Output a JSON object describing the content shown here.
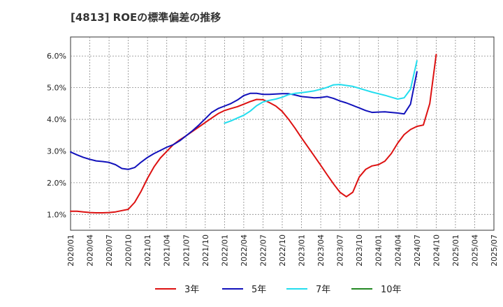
{
  "chart_data": {
    "type": "line",
    "title": "[4813]  ROEの標準偏差の推移",
    "xlabel": "",
    "ylabel": "",
    "ylim": [
      0.5,
      6.6
    ],
    "y_ticks": [
      1.0,
      2.0,
      3.0,
      4.0,
      5.0,
      6.0
    ],
    "y_tick_labels": [
      "1.0%",
      "2.0%",
      "3.0%",
      "4.0%",
      "5.0%",
      "6.0%"
    ],
    "x_tick_labels": [
      "2020/01",
      "2020/04",
      "2020/07",
      "2020/10",
      "2021/01",
      "2021/04",
      "2021/07",
      "2021/10",
      "2022/01",
      "2022/04",
      "2022/07",
      "2022/10",
      "2023/01",
      "2023/04",
      "2023/07",
      "2023/10",
      "2024/01",
      "2024/04",
      "2024/07",
      "2024/10",
      "2025/01",
      "2025/04",
      "2025/07"
    ],
    "x_range_months": [
      0,
      66
    ],
    "grid": true,
    "legend_position": "bottom",
    "series": [
      {
        "name": "3年",
        "color": "#dd1111",
        "points": [
          [
            0,
            1.1
          ],
          [
            1,
            1.1
          ],
          [
            2,
            1.08
          ],
          [
            3,
            1.06
          ],
          [
            4,
            1.05
          ],
          [
            5,
            1.05
          ],
          [
            6,
            1.06
          ],
          [
            7,
            1.08
          ],
          [
            8,
            1.12
          ],
          [
            9,
            1.16
          ],
          [
            10,
            1.38
          ],
          [
            11,
            1.73
          ],
          [
            12,
            2.14
          ],
          [
            13,
            2.5
          ],
          [
            14,
            2.78
          ],
          [
            15,
            2.99
          ],
          [
            16,
            3.2
          ],
          [
            17,
            3.35
          ],
          [
            18,
            3.48
          ],
          [
            19,
            3.62
          ],
          [
            20,
            3.76
          ],
          [
            21,
            3.9
          ],
          [
            22,
            4.04
          ],
          [
            23,
            4.18
          ],
          [
            24,
            4.28
          ],
          [
            25,
            4.34
          ],
          [
            26,
            4.4
          ],
          [
            27,
            4.48
          ],
          [
            28,
            4.56
          ],
          [
            29,
            4.63
          ],
          [
            30,
            4.62
          ],
          [
            31,
            4.53
          ],
          [
            32,
            4.42
          ],
          [
            33,
            4.25
          ],
          [
            34,
            4.0
          ],
          [
            35,
            3.72
          ],
          [
            36,
            3.42
          ],
          [
            37,
            3.13
          ],
          [
            38,
            2.84
          ],
          [
            39,
            2.55
          ],
          [
            40,
            2.25
          ],
          [
            41,
            1.96
          ],
          [
            42,
            1.7
          ],
          [
            43,
            1.56
          ],
          [
            44,
            1.7
          ],
          [
            45,
            2.18
          ],
          [
            46,
            2.42
          ],
          [
            47,
            2.53
          ],
          [
            48,
            2.57
          ],
          [
            49,
            2.68
          ],
          [
            50,
            2.92
          ],
          [
            51,
            3.25
          ],
          [
            52,
            3.52
          ],
          [
            53,
            3.68
          ],
          [
            54,
            3.78
          ],
          [
            55,
            3.82
          ],
          [
            56,
            4.5
          ],
          [
            57,
            6.05
          ]
        ]
      },
      {
        "name": "5年",
        "color": "#1111bb",
        "points": [
          [
            0,
            2.97
          ],
          [
            1,
            2.88
          ],
          [
            2,
            2.8
          ],
          [
            3,
            2.74
          ],
          [
            4,
            2.69
          ],
          [
            5,
            2.67
          ],
          [
            6,
            2.64
          ],
          [
            7,
            2.57
          ],
          [
            8,
            2.45
          ],
          [
            9,
            2.42
          ],
          [
            10,
            2.48
          ],
          [
            11,
            2.65
          ],
          [
            12,
            2.8
          ],
          [
            13,
            2.92
          ],
          [
            14,
            3.02
          ],
          [
            15,
            3.12
          ],
          [
            16,
            3.2
          ],
          [
            17,
            3.32
          ],
          [
            18,
            3.48
          ],
          [
            19,
            3.64
          ],
          [
            20,
            3.82
          ],
          [
            21,
            4.02
          ],
          [
            22,
            4.22
          ],
          [
            23,
            4.34
          ],
          [
            24,
            4.42
          ],
          [
            25,
            4.5
          ],
          [
            26,
            4.61
          ],
          [
            27,
            4.75
          ],
          [
            28,
            4.82
          ],
          [
            29,
            4.82
          ],
          [
            30,
            4.79
          ],
          [
            31,
            4.79
          ],
          [
            32,
            4.8
          ],
          [
            33,
            4.81
          ],
          [
            34,
            4.81
          ],
          [
            35,
            4.77
          ],
          [
            36,
            4.72
          ],
          [
            37,
            4.7
          ],
          [
            38,
            4.68
          ],
          [
            39,
            4.69
          ],
          [
            40,
            4.72
          ],
          [
            41,
            4.66
          ],
          [
            42,
            4.58
          ],
          [
            43,
            4.52
          ],
          [
            44,
            4.44
          ],
          [
            45,
            4.36
          ],
          [
            46,
            4.28
          ],
          [
            47,
            4.22
          ],
          [
            48,
            4.23
          ],
          [
            49,
            4.24
          ],
          [
            50,
            4.22
          ],
          [
            51,
            4.2
          ],
          [
            52,
            4.17
          ],
          [
            53,
            4.48
          ],
          [
            54,
            5.5
          ]
        ]
      },
      {
        "name": "7年",
        "color": "#22ddee",
        "points": [
          [
            24,
            3.88
          ],
          [
            25,
            3.95
          ],
          [
            26,
            4.04
          ],
          [
            27,
            4.13
          ],
          [
            28,
            4.26
          ],
          [
            29,
            4.43
          ],
          [
            30,
            4.55
          ],
          [
            31,
            4.6
          ],
          [
            32,
            4.64
          ],
          [
            33,
            4.7
          ],
          [
            34,
            4.78
          ],
          [
            35,
            4.82
          ],
          [
            36,
            4.84
          ],
          [
            37,
            4.87
          ],
          [
            38,
            4.9
          ],
          [
            39,
            4.95
          ],
          [
            40,
            5.01
          ],
          [
            41,
            5.09
          ],
          [
            42,
            5.1
          ],
          [
            43,
            5.07
          ],
          [
            44,
            5.04
          ],
          [
            45,
            4.98
          ],
          [
            46,
            4.92
          ],
          [
            47,
            4.86
          ],
          [
            48,
            4.81
          ],
          [
            49,
            4.76
          ],
          [
            50,
            4.7
          ],
          [
            51,
            4.64
          ],
          [
            52,
            4.68
          ],
          [
            53,
            4.95
          ],
          [
            54,
            5.85
          ]
        ]
      },
      {
        "name": "10年",
        "color": "#228822",
        "points": []
      }
    ]
  }
}
